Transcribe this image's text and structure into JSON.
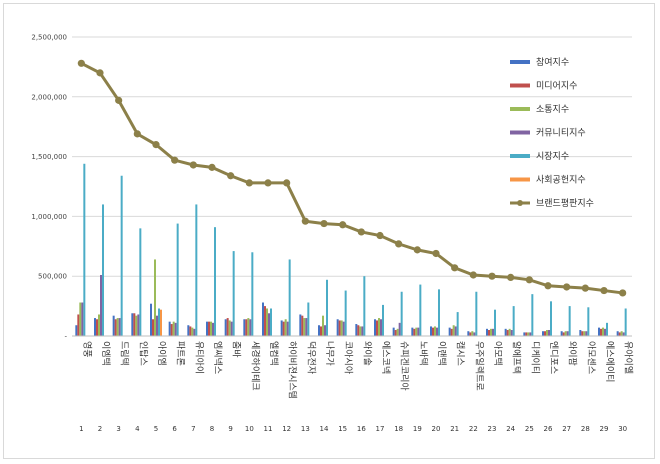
{
  "chart_data": {
    "type": "bar+line",
    "title": "",
    "xlabel": "",
    "ylabel": "",
    "ylim": [
      0,
      2500000
    ],
    "yticks": [
      0,
      500000,
      1000000,
      1500000,
      2000000,
      2500000
    ],
    "ytick_labels": [
      "-",
      "500,000",
      "1,000,000",
      "1,500,000",
      "2,000,000",
      "2,500,000"
    ],
    "grid": true,
    "legend_position": "right",
    "x_numbers": [
      "1",
      "2",
      "3",
      "4",
      "5",
      "6",
      "7",
      "8",
      "9",
      "10",
      "11",
      "12",
      "13",
      "14",
      "15",
      "16",
      "17",
      "18",
      "19",
      "20",
      "21",
      "22",
      "23",
      "24",
      "25",
      "26",
      "27",
      "28",
      "29",
      "30"
    ],
    "categories": [
      "영풍",
      "이엠텍",
      "드림텍",
      "인탑스",
      "아이엠",
      "파트론",
      "유티아이",
      "엠씨넥스",
      "줌바",
      "세경하이테크",
      "엘컴텍",
      "하이비젼시스템",
      "덕우전자",
      "나무가",
      "코아시아",
      "와이솔",
      "에스코넥",
      "슈피겐코리아",
      "노바텍",
      "이랜텍",
      "캠시스",
      "우주일렉트로",
      "아모텍",
      "알에프텍",
      "디케이티",
      "엔디포스",
      "와이팜",
      "아모센스",
      "에스에이티",
      "유아이엘"
    ],
    "series": [
      {
        "name": "참여지수",
        "color": "#4472c4",
        "values": [
          90000,
          150000,
          170000,
          190000,
          270000,
          120000,
          90000,
          120000,
          140000,
          140000,
          280000,
          130000,
          180000,
          90000,
          140000,
          100000,
          140000,
          70000,
          70000,
          80000,
          70000,
          40000,
          60000,
          60000,
          30000,
          40000,
          40000,
          50000,
          70000,
          40000
        ]
      },
      {
        "name": "미디어지수",
        "color": "#c0504d",
        "values": [
          180000,
          140000,
          140000,
          190000,
          140000,
          100000,
          80000,
          120000,
          150000,
          140000,
          250000,
          120000,
          170000,
          80000,
          130000,
          90000,
          130000,
          50000,
          60000,
          70000,
          60000,
          30000,
          50000,
          50000,
          30000,
          40000,
          30000,
          40000,
          60000,
          30000
        ]
      },
      {
        "name": "소통지수",
        "color": "#9bbb59",
        "values": [
          280000,
          180000,
          150000,
          170000,
          640000,
          120000,
          70000,
          120000,
          130000,
          150000,
          230000,
          140000,
          150000,
          170000,
          130000,
          80000,
          150000,
          60000,
          70000,
          80000,
          90000,
          40000,
          60000,
          60000,
          30000,
          50000,
          40000,
          40000,
          70000,
          40000
        ]
      },
      {
        "name": "커뮤니티지수",
        "color": "#8064a2",
        "values": [
          280000,
          510000,
          150000,
          180000,
          170000,
          110000,
          60000,
          110000,
          120000,
          140000,
          190000,
          120000,
          150000,
          90000,
          120000,
          80000,
          140000,
          110000,
          70000,
          70000,
          80000,
          30000,
          60000,
          50000,
          30000,
          50000,
          40000,
          40000,
          60000,
          30000
        ]
      },
      {
        "name": "시장지수",
        "color": "#4bacc6",
        "values": [
          1440000,
          1100000,
          1340000,
          900000,
          230000,
          940000,
          1100000,
          910000,
          710000,
          700000,
          230000,
          640000,
          280000,
          470000,
          380000,
          500000,
          260000,
          370000,
          430000,
          390000,
          200000,
          370000,
          220000,
          250000,
          350000,
          290000,
          250000,
          240000,
          110000,
          230000
        ]
      },
      {
        "name": "사회공헌지수",
        "color": "#f79646",
        "values": [
          0,
          0,
          0,
          0,
          220000,
          0,
          0,
          0,
          0,
          0,
          0,
          0,
          0,
          0,
          0,
          0,
          0,
          0,
          0,
          0,
          0,
          0,
          0,
          0,
          0,
          0,
          0,
          0,
          0,
          0
        ]
      }
    ],
    "line": {
      "name": "브랜드평판지수",
      "color": "#8c8049",
      "values": [
        2280000,
        2200000,
        1970000,
        1690000,
        1600000,
        1470000,
        1430000,
        1410000,
        1340000,
        1280000,
        1280000,
        1280000,
        960000,
        940000,
        930000,
        870000,
        840000,
        770000,
        720000,
        690000,
        570000,
        510000,
        500000,
        490000,
        470000,
        420000,
        410000,
        400000,
        380000,
        360000
      ]
    }
  }
}
